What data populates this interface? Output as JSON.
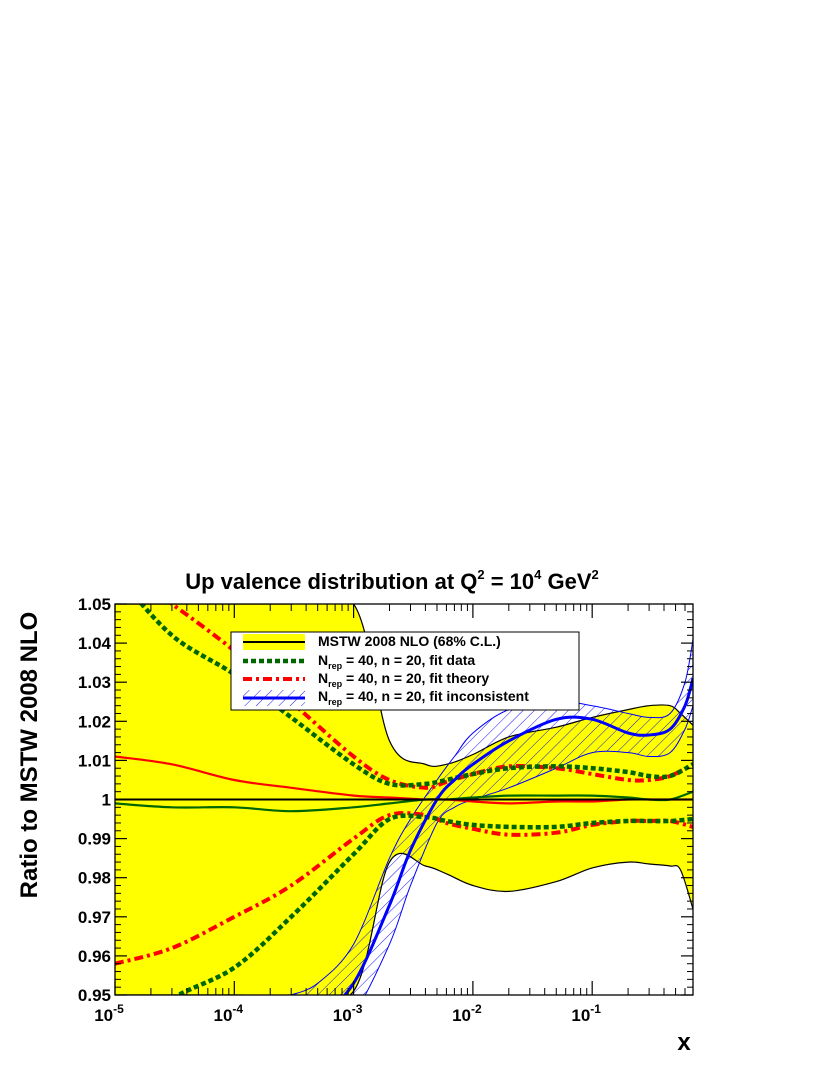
{
  "chart_data": {
    "type": "line",
    "title": {
      "prefix": "Up valence distribution at Q",
      "sup1": "2",
      "mid": " = 10",
      "sup2": "4",
      "suffix": " GeV",
      "sup3": "2"
    },
    "xlabel": "x",
    "ylabel": "Ratio to MSTW 2008 NLO",
    "x_scale": "log",
    "xlim": [
      1e-05,
      0.7
    ],
    "ylim": [
      0.95,
      1.05
    ],
    "y_ticks": [
      "0.95",
      "0.96",
      "0.97",
      "0.98",
      "0.99",
      "1",
      "1.01",
      "1.02",
      "1.03",
      "1.04",
      "1.05"
    ],
    "x_ticks": [
      {
        "value": 1e-05,
        "base": "10",
        "exp": "-5"
      },
      {
        "value": 0.0001,
        "base": "10",
        "exp": "-4"
      },
      {
        "value": 0.001,
        "base": "10",
        "exp": "-3"
      },
      {
        "value": 0.01,
        "base": "10",
        "exp": "-2"
      },
      {
        "value": 0.1,
        "base": "10",
        "exp": "-1"
      }
    ],
    "legend_position": "top-center",
    "legend": [
      {
        "id": "mstw",
        "text": "MSTW 2008 NLO (68% C.L.)"
      },
      {
        "id": "fitdata",
        "pre": "N",
        "sub": "rep",
        "text": " = 40, n = 20, fit data"
      },
      {
        "id": "fittheory",
        "pre": "N",
        "sub": "rep",
        "text": " = 40, n = 20, fit theory"
      },
      {
        "id": "fitincons",
        "pre": "N",
        "sub": "rep",
        "text": " = 40, n = 20, fit inconsistent"
      }
    ],
    "colors": {
      "band": "#ffff00",
      "mstw": "#000000",
      "fit_data": "#006600",
      "fit_theory": "#ff0000",
      "fit_inconsistent": "#0000ff"
    },
    "series": [
      {
        "name": "MSTW 2008 NLO (68% C.L.)",
        "style": "band",
        "x": [
          1e-05,
          3e-05,
          0.0001,
          0.0003,
          0.001,
          0.002,
          0.004,
          0.006,
          0.01,
          0.02,
          0.05,
          0.1,
          0.2,
          0.3,
          0.45,
          0.55,
          0.7
        ],
        "upper": [
          1.05,
          1.05,
          1.05,
          1.05,
          1.05,
          1.015,
          1.009,
          1.009,
          1.0115,
          1.016,
          1.0185,
          1.021,
          1.023,
          1.024,
          1.024,
          1.022,
          1.019
        ],
        "lower": [
          0.95,
          0.95,
          0.95,
          0.95,
          0.951,
          0.984,
          0.983,
          0.981,
          0.978,
          0.9765,
          0.979,
          0.9825,
          0.984,
          0.9835,
          0.983,
          0.982,
          0.972
        ],
        "central": [
          1.0,
          1.0,
          1.0,
          1.0,
          1.0,
          1.0,
          1.0,
          1.0,
          1.0,
          1.0,
          1.0,
          1.0,
          1.0,
          1.0,
          1.0,
          1.0,
          1.0
        ]
      },
      {
        "name": "Nrep = 40, n = 20, fit data",
        "style": "dashed",
        "x": [
          1e-05,
          3e-05,
          0.0001,
          0.0003,
          0.001,
          0.002,
          0.004,
          0.006,
          0.01,
          0.02,
          0.05,
          0.1,
          0.2,
          0.3,
          0.45,
          0.7
        ],
        "upper": [
          1.058,
          1.042,
          1.032,
          1.021,
          1.009,
          1.004,
          1.004,
          1.005,
          1.0065,
          1.008,
          1.0085,
          1.008,
          1.007,
          1.006,
          1.006,
          1.009
        ],
        "lower": [
          0.938,
          0.949,
          0.957,
          0.97,
          0.986,
          0.995,
          0.9955,
          0.9945,
          0.9935,
          0.993,
          0.993,
          0.994,
          0.9945,
          0.9945,
          0.9945,
          0.995
        ],
        "central": [
          0.999,
          0.998,
          0.998,
          0.997,
          0.998,
          0.999,
          1.0,
          1.0,
          1.0005,
          1.001,
          1.001,
          1.001,
          1.0005,
          1.0,
          1.0,
          1.002
        ]
      },
      {
        "name": "Nrep = 40, n = 20, fit theory",
        "style": "dash-dot",
        "x": [
          1e-05,
          3e-05,
          0.0001,
          0.0003,
          0.001,
          0.002,
          0.004,
          0.006,
          0.01,
          0.02,
          0.05,
          0.1,
          0.2,
          0.3,
          0.45,
          0.7
        ],
        "upper": [
          1.06,
          1.05,
          1.038,
          1.025,
          1.011,
          1.005,
          1.003,
          1.0045,
          1.0065,
          1.0085,
          1.008,
          1.0065,
          1.005,
          1.005,
          1.006,
          1.009
        ],
        "lower": [
          0.958,
          0.962,
          0.97,
          0.978,
          0.99,
          0.996,
          0.996,
          0.994,
          0.9925,
          0.991,
          0.9915,
          0.9935,
          0.9945,
          0.9945,
          0.9945,
          0.993
        ],
        "central": [
          1.011,
          1.009,
          1.005,
          1.003,
          1.001,
          1.0005,
          1.0,
          1.0,
          0.9995,
          0.999,
          0.9995,
          0.9995,
          1.0,
          1.0,
          1.0,
          1.0
        ]
      },
      {
        "name": "Nrep = 40, n = 20, fit inconsistent",
        "style": "hatched",
        "x": [
          0.0003,
          0.0005,
          0.001,
          0.002,
          0.003,
          0.005,
          0.007,
          0.01,
          0.02,
          0.05,
          0.1,
          0.2,
          0.3,
          0.45,
          0.6,
          0.7
        ],
        "upper": [
          0.95,
          0.953,
          0.963,
          0.985,
          0.995,
          1.005,
          1.011,
          1.017,
          1.023,
          1.025,
          1.024,
          1.022,
          1.021,
          1.022,
          1.03,
          1.041
        ],
        "lower": [
          0.934,
          0.937,
          0.945,
          0.963,
          0.978,
          0.994,
          0.998,
          1.0,
          1.003,
          1.008,
          1.012,
          1.012,
          1.011,
          1.012,
          1.018,
          1.024
        ],
        "central": [
          0.94,
          0.944,
          0.953,
          0.973,
          0.987,
          1.0,
          1.005,
          1.009,
          1.015,
          1.0205,
          1.0205,
          1.017,
          1.0165,
          1.018,
          1.024,
          1.031
        ]
      }
    ]
  }
}
